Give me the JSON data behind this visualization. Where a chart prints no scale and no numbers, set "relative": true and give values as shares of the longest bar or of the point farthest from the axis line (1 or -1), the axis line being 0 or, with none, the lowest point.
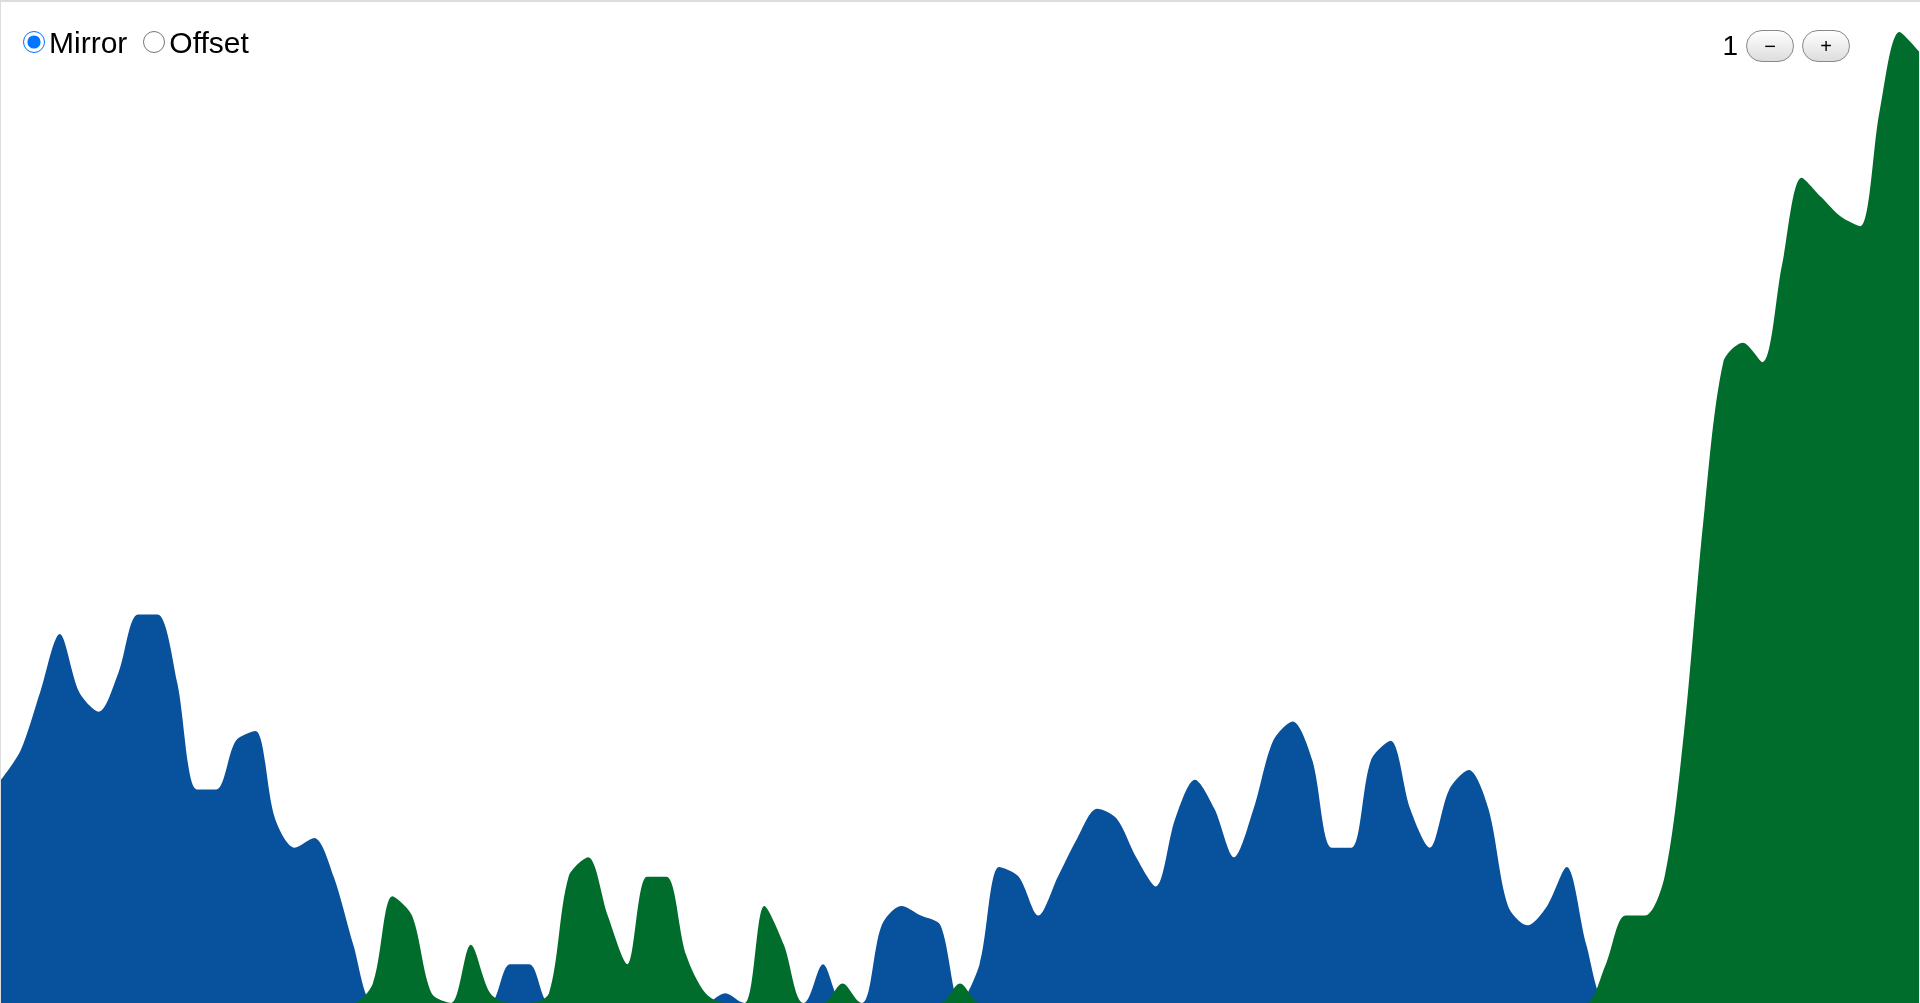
{
  "chart_data": {
    "type": "area",
    "relative": true,
    "grid": false,
    "marker": "none",
    "annotations": [
      "Mirror",
      "Offset",
      "1",
      "−",
      "+"
    ],
    "categories": [
      null,
      null,
      null,
      null,
      null,
      null,
      null,
      null,
      null,
      null,
      null,
      null,
      null,
      null,
      null,
      null,
      null,
      null,
      null,
      null,
      null,
      null,
      null,
      null,
      null,
      null,
      null,
      null,
      null,
      null,
      null,
      null,
      null,
      null,
      null,
      null,
      null,
      null,
      null,
      null,
      null,
      null,
      null,
      null,
      null,
      null,
      null,
      null,
      null,
      null,
      null,
      null,
      null,
      null,
      null,
      null,
      null,
      null,
      null,
      null,
      null,
      null,
      null,
      null,
      null,
      null,
      null,
      null,
      null,
      null,
      null,
      null,
      null,
      null,
      null,
      null,
      null,
      null,
      null,
      null,
      null,
      null,
      null,
      null,
      null,
      null,
      null,
      null,
      null,
      null,
      null,
      null,
      null,
      null,
      null,
      null,
      null,
      null,
      null
    ],
    "series": [
      {
        "color": "#08519c",
        "values": [
          0.23,
          0.26,
          0.32,
          0.38,
          0.32,
          0.3,
          0.34,
          0.4,
          0.4,
          0.33,
          0.22,
          0.22,
          0.27,
          0.28,
          0.19,
          0.16,
          0.17,
          0.13,
          0.06,
          0,
          0,
          0,
          0,
          0,
          0,
          0,
          0.04,
          0.04,
          0,
          0,
          0,
          0,
          0,
          0,
          0,
          0,
          0,
          0.01,
          0,
          0,
          0,
          0,
          0.04,
          0,
          0,
          0.08,
          0.1,
          0.09,
          0.08,
          0,
          0.04,
          0.14,
          0.13,
          0.09,
          0.13,
          0.17,
          0.2,
          0.19,
          0.15,
          0.12,
          0.19,
          0.23,
          0.2,
          0.15,
          0.2,
          0.27,
          0.29,
          0.25,
          0.16,
          0.16,
          0.25,
          0.27,
          0.2,
          0.16,
          0.22,
          0.24,
          0.2,
          0.1,
          0.08,
          0.1,
          0.14,
          0.06,
          0,
          0,
          0,
          0,
          0,
          0,
          0,
          0,
          0,
          0,
          0,
          0,
          0,
          0,
          0,
          0,
          0
        ]
      },
      {
        "color": "#006d2c",
        "values": [
          0,
          0,
          0,
          0,
          0,
          0,
          0,
          0,
          0,
          0,
          0,
          0,
          0,
          0,
          0,
          0,
          0,
          0,
          0,
          0.02,
          0.11,
          0.09,
          0.01,
          0,
          0.06,
          0.01,
          0,
          0,
          0.01,
          0.13,
          0.15,
          0.09,
          0.04,
          0.13,
          0.13,
          0.05,
          0.01,
          0,
          0,
          0.1,
          0.06,
          0,
          0,
          0.02,
          0,
          0,
          0,
          0,
          0,
          0.02,
          0,
          0,
          0,
          0,
          0,
          0,
          0,
          0,
          0,
          0,
          0,
          0,
          0,
          0,
          0,
          0,
          0,
          0,
          0,
          0,
          0,
          0,
          0,
          0,
          0,
          0,
          0,
          0,
          0,
          0,
          0,
          0,
          0.04,
          0.09,
          0.09,
          0.13,
          0.28,
          0.5,
          0.66,
          0.68,
          0.66,
          0.76,
          0.85,
          0.83,
          0.81,
          0.8,
          0.92,
          1,
          0.98
        ]
      }
    ]
  }
}
